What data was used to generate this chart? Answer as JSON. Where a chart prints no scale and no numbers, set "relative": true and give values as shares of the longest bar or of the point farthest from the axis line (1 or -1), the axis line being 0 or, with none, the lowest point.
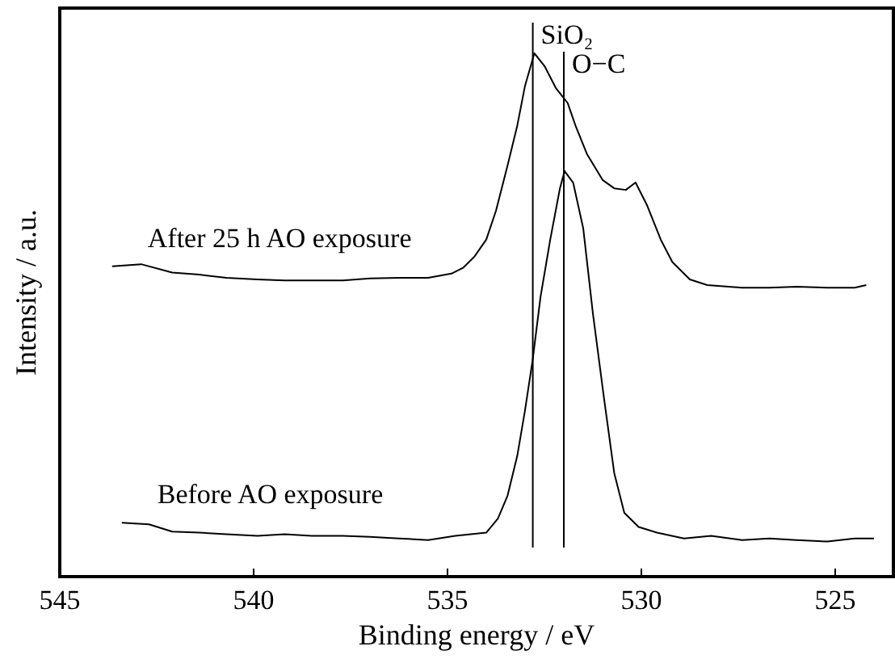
{
  "chart_data": {
    "type": "line",
    "relative": true,
    "xlabel": "Binding energy / eV",
    "ylabel": "Intensity / a.u.",
    "xlim": [
      545,
      523.5
    ],
    "xticks": [
      545,
      540,
      535,
      530,
      525
    ],
    "grid": false,
    "legend": false,
    "marker": "none",
    "line_style": "solid",
    "tick_labels": "x",
    "series": [
      {
        "name": "After 25 h AO exposure",
        "color": "#000000",
        "x": [
          543.65,
          542.9,
          542.1,
          541.4,
          540.7,
          539.9,
          539.2,
          538.5,
          537.7,
          537.0,
          536.25,
          535.5,
          534.9,
          534.6,
          534.3,
          534.0,
          533.75,
          533.45,
          533.2,
          533.0,
          532.76,
          532.5,
          532.2,
          531.9,
          531.7,
          531.4,
          531.0,
          530.7,
          530.4,
          530.15,
          529.85,
          529.5,
          529.2,
          528.75,
          528.3,
          527.4,
          526.7,
          526.0,
          525.2,
          524.5,
          524.2
        ],
        "values": [
          0.593,
          0.597,
          0.581,
          0.577,
          0.571,
          0.568,
          0.566,
          0.566,
          0.566,
          0.57,
          0.571,
          0.571,
          0.579,
          0.59,
          0.612,
          0.644,
          0.699,
          0.786,
          0.862,
          0.938,
          1.0,
          0.976,
          0.933,
          0.905,
          0.862,
          0.807,
          0.758,
          0.742,
          0.739,
          0.753,
          0.709,
          0.644,
          0.601,
          0.568,
          0.557,
          0.552,
          0.552,
          0.554,
          0.552,
          0.552,
          0.557
        ]
      },
      {
        "name": "Before AO exposure",
        "color": "#000000",
        "x": [
          543.4,
          542.7,
          542.1,
          541.4,
          540.7,
          539.9,
          539.2,
          538.5,
          537.7,
          537.0,
          536.25,
          535.5,
          534.8,
          534.0,
          533.7,
          533.45,
          533.2,
          533.0,
          532.8,
          532.6,
          532.35,
          532.1,
          531.98,
          531.76,
          531.5,
          531.25,
          530.96,
          530.7,
          530.44,
          530.07,
          529.6,
          528.9,
          528.2,
          527.4,
          526.7,
          526.0,
          525.2,
          524.5,
          524.0
        ],
        "values": [
          0.103,
          0.1,
          0.086,
          0.084,
          0.081,
          0.078,
          0.081,
          0.078,
          0.078,
          0.076,
          0.073,
          0.07,
          0.078,
          0.084,
          0.111,
          0.155,
          0.231,
          0.318,
          0.416,
          0.535,
          0.644,
          0.742,
          0.775,
          0.753,
          0.666,
          0.503,
          0.339,
          0.198,
          0.122,
          0.095,
          0.084,
          0.073,
          0.078,
          0.07,
          0.073,
          0.07,
          0.067,
          0.073,
          0.073
        ]
      }
    ],
    "ref_lines": [
      {
        "axis": "x",
        "value": 532.8,
        "label": "SiO₂",
        "color": "#000000",
        "line_style": "solid"
      },
      {
        "axis": "x",
        "value": 532.0,
        "label": "O−C",
        "color": "#000000",
        "line_style": "solid"
      }
    ]
  }
}
